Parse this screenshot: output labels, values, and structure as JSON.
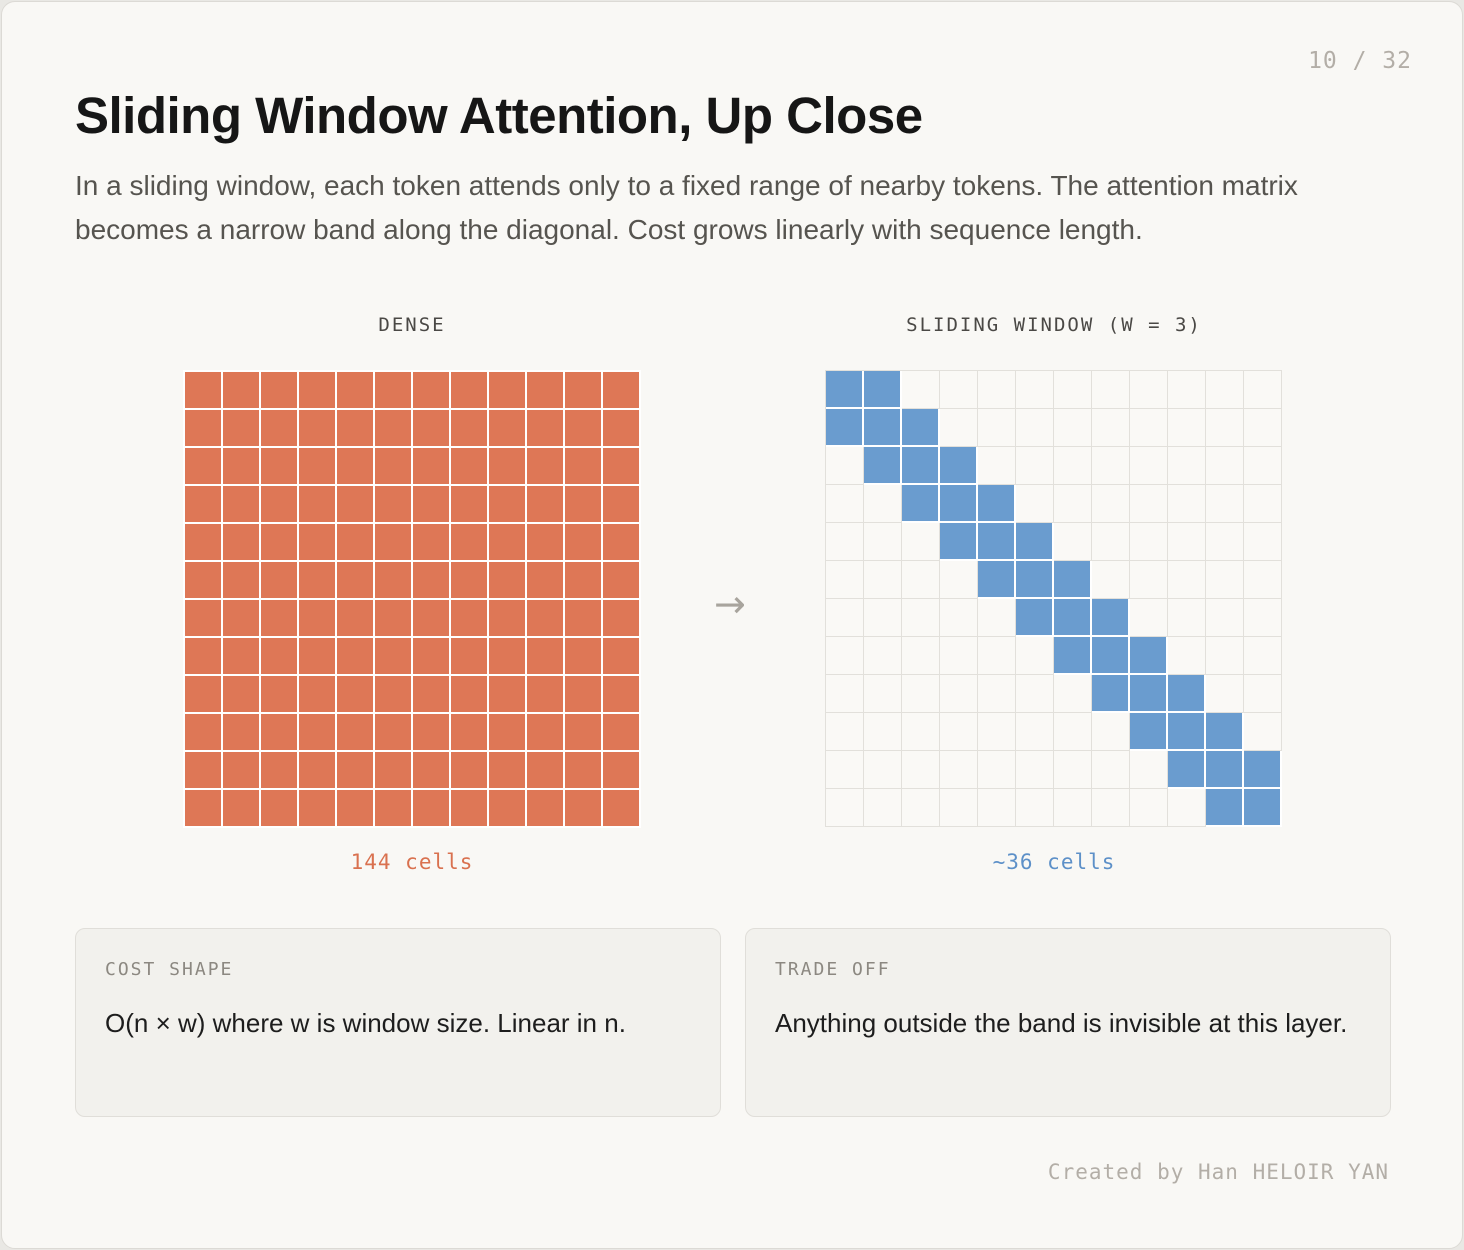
{
  "page_number": "10 / 32",
  "title": "Sliding Window Attention, Up Close",
  "subtitle": "In a sliding window, each token attends only to a fixed range of nearby tokens. The attention matrix becomes a narrow band along the diagonal. Cost grows linearly with sequence length.",
  "dense": {
    "label": "DENSE",
    "rows": 12,
    "cols": 12,
    "count_label": "144 cells",
    "color": "#de7756"
  },
  "arrow": "→",
  "sliding": {
    "label": "SLIDING WINDOW (W = 3)",
    "rows": 12,
    "cols": 12,
    "band": [
      [
        0,
        1
      ],
      [
        0,
        2
      ],
      [
        1,
        3
      ],
      [
        2,
        4
      ],
      [
        3,
        5
      ],
      [
        4,
        6
      ],
      [
        5,
        7
      ],
      [
        6,
        8
      ],
      [
        7,
        9
      ],
      [
        8,
        10
      ],
      [
        9,
        11
      ],
      [
        10,
        11
      ]
    ],
    "count_label": "~36 cells",
    "color": "#6a9ccf",
    "empty_color": "#faf9f6"
  },
  "cards": [
    {
      "label": "COST SHAPE",
      "text": "O(n × w) where w is window size. Linear in n."
    },
    {
      "label": "TRADE OFF",
      "text": "Anything outside the band is invisible at this layer."
    }
  ],
  "credit": "Created by Han HELOIR YAN"
}
